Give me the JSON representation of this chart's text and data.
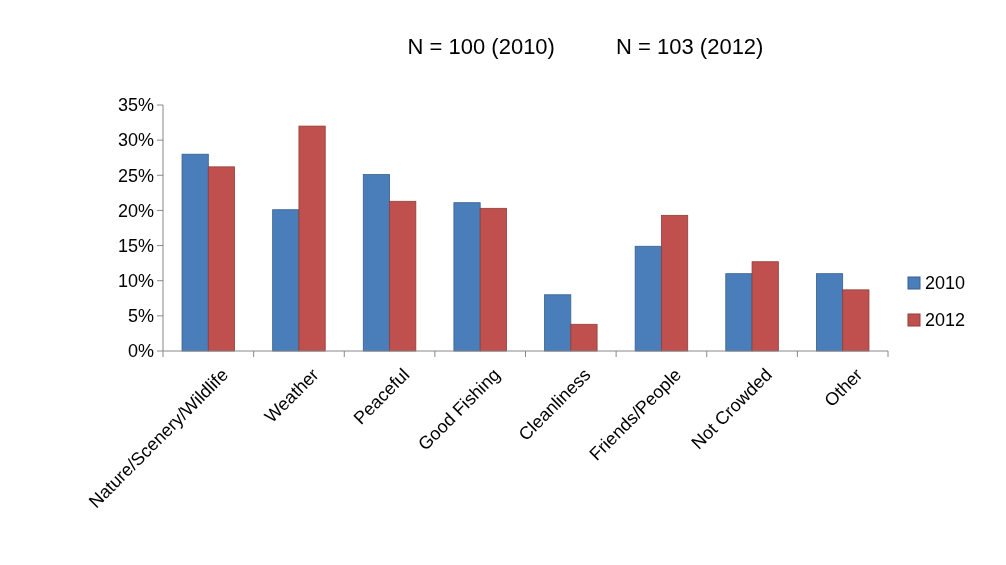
{
  "chart_data": {
    "type": "bar",
    "title": "N = 100 (2010)          N = 103 (2012)",
    "categories": [
      "Nature/Scenery/Wildlife",
      "Weather",
      "Peaceful",
      "Good Fishing",
      "Cleanliness",
      "Friends/People",
      "Not Crowded",
      "Other"
    ],
    "series": [
      {
        "name": "2010",
        "color": "#4a7ebb",
        "values": [
          28.0,
          20.1,
          25.1,
          21.1,
          8.0,
          14.9,
          11.0,
          11.0
        ]
      },
      {
        "name": "2012",
        "color": "#c0504d",
        "values": [
          26.2,
          32.0,
          21.3,
          20.3,
          3.8,
          19.3,
          12.7,
          8.7
        ]
      }
    ],
    "ylim": [
      0,
      35
    ],
    "yticks": [
      {
        "value": 0,
        "label": "0%"
      },
      {
        "value": 5,
        "label": "5%"
      },
      {
        "value": 10,
        "label": "10%"
      },
      {
        "value": 15,
        "label": "15%"
      },
      {
        "value": 20,
        "label": "20%"
      },
      {
        "value": 25,
        "label": "25%"
      },
      {
        "value": 30,
        "label": "30%"
      },
      {
        "value": 35,
        "label": "35%"
      }
    ],
    "grid": false,
    "legend": "right"
  }
}
